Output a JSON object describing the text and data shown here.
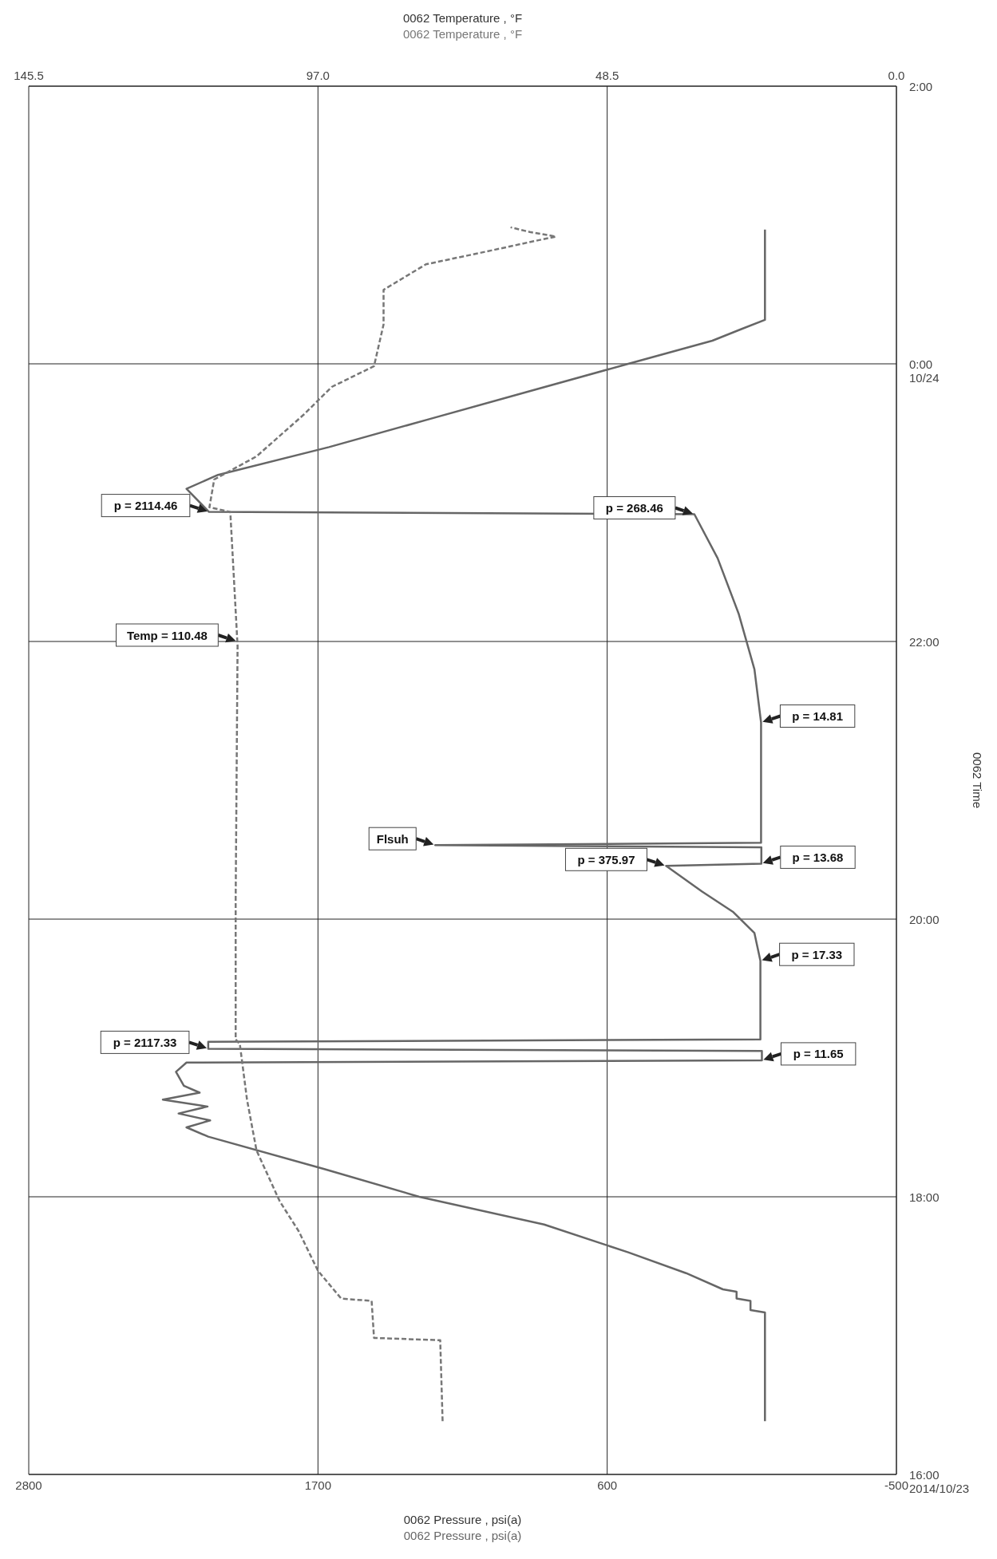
{
  "chart_data": {
    "type": "line",
    "orientation": "horizontal",
    "xlabel": "0062 Pressure , psi(a)",
    "x2label": "0062 Temperature , °F",
    "ylabel": "0062 Time",
    "ylim": [
      "2014-10-23T16:00",
      "2014-10-24T02:00"
    ],
    "yticks": [
      {
        "value": "2014-10-23T16:00",
        "label": "16:00\n2014/10/23"
      },
      {
        "value": "2014-10-23T18:00",
        "label": "18:00"
      },
      {
        "value": "2014-10-23T20:00",
        "label": "20:00"
      },
      {
        "value": "2014-10-23T22:00",
        "label": "22:00"
      },
      {
        "value": "2014-10-24T00:00",
        "label": "0:00\n10/24"
      },
      {
        "value": "2014-10-24T02:00",
        "label": "2:00"
      }
    ],
    "xlim": [
      2800,
      -500
    ],
    "xticks": [
      2800,
      1700,
      600,
      -500
    ],
    "x2lim": [
      145.5,
      0
    ],
    "x2ticks": [
      145.5,
      {
        "value": 97,
        "label": "97.0"
      },
      48.5,
      {
        "value": 0,
        "label": "0.0"
      }
    ],
    "grid": true,
    "marker": "none",
    "series": [
      {
        "name": "0062 Pressure , psi(a)",
        "color": "#666666",
        "line_style": "solid",
        "x": [
          "2014-10-23T16:23",
          "2014-10-23T17:10",
          "2014-10-23T17:11",
          "2014-10-23T17:15",
          "2014-10-23T17:16",
          "2014-10-23T17:19",
          "2014-10-23T17:20",
          "2014-10-23T17:27",
          "2014-10-23T17:36",
          "2014-10-23T17:48",
          "2014-10-23T18:00",
          "2014-10-23T18:12",
          "2014-10-23T18:26",
          "2014-10-23T18:30",
          "2014-10-23T18:33",
          "2014-10-23T18:36",
          "2014-10-23T18:39",
          "2014-10-23T18:42",
          "2014-10-23T18:45",
          "2014-10-23T18:48",
          "2014-10-23T18:54",
          "2014-10-23T18:58",
          "2014-10-23T18:59",
          "2014-10-23T19:03",
          "2014-10-23T19:04",
          "2014-10-23T19:07",
          "2014-10-23T19:08",
          "2014-10-23T19:42",
          "2014-10-23T19:54",
          "2014-10-23T20:03",
          "2014-10-23T20:12",
          "2014-10-23T20:23",
          "2014-10-23T20:24",
          "2014-10-23T20:31",
          "2014-10-23T20:32",
          "2014-10-23T20:33",
          "2014-10-23T21:25",
          "2014-10-23T21:48",
          "2014-10-23T22:12",
          "2014-10-23T22:36",
          "2014-10-23T22:55",
          "2014-10-23T22:56",
          "2014-10-23T23:06",
          "2014-10-23T23:12",
          "2014-10-23T23:24",
          "2014-10-23T23:36",
          "2014-10-23T23:48",
          "2014-10-24T00:00",
          "2014-10-24T00:10",
          "2014-10-24T00:15",
          "2014-10-24T00:19",
          "2014-10-24T00:58"
        ],
        "values": [
          0,
          0,
          55,
          55,
          108,
          108,
          160,
          300,
          520,
          840,
          1315,
          1676,
          2117.33,
          2200,
          2110,
          2230,
          2120,
          2290,
          2150,
          2210,
          2240,
          2200,
          11.65,
          11.65,
          2117.33,
          2117.33,
          17.33,
          17.33,
          40,
          120,
          240,
          375.97,
          13.68,
          13.68,
          1254,
          14.81,
          14.81,
          40,
          100,
          180,
          268.46,
          2114.46,
          2200,
          2080,
          1658,
          1280,
          900,
          520,
          200,
          90,
          0,
          0
        ]
      },
      {
        "name": "0062 Temperature , °F",
        "color": "#777777",
        "line_style": "dashed",
        "axis": "x2",
        "x": [
          "2014-10-23T16:23",
          "2014-10-23T16:58",
          "2014-10-23T16:59",
          "2014-10-23T17:15",
          "2014-10-23T17:16",
          "2014-10-23T17:28",
          "2014-10-23T17:45",
          "2014-10-23T17:58",
          "2014-10-23T18:20",
          "2014-10-23T18:42",
          "2014-10-23T19:06",
          "2014-10-23T19:08",
          "2014-10-23T20:09",
          "2014-10-23T21:58",
          "2014-10-23T22:56",
          "2014-10-23T22:58",
          "2014-10-23T23:10",
          "2014-10-23T23:20",
          "2014-10-23T23:38",
          "2014-10-23T23:50",
          "2014-10-23T23:59",
          "2014-10-24T00:17",
          "2014-10-24T00:32",
          "2014-10-24T00:43",
          "2014-10-24T00:49",
          "2014-10-24T00:53",
          "2014-10-24T00:55",
          "2014-10-24T00:57",
          "2014-10-24T00:59"
        ],
        "values": [
          76.1,
          76.5,
          87.6,
          88.0,
          93.1,
          97.0,
          100.2,
          103.4,
          107.3,
          108.9,
          110.1,
          110.8,
          110.8,
          110.48,
          111.7,
          115.2,
          114.4,
          107.3,
          99.4,
          94.7,
          87.6,
          86.0,
          86.0,
          78.9,
          67.9,
          60.8,
          57.1,
          61.5,
          64.7
        ]
      }
    ],
    "annotations": [
      {
        "text": "p = 2117.33",
        "y": "2014-10-23T19:04",
        "x": 2117.33
      },
      {
        "text": "p = 11.65",
        "y": "2014-10-23T18:59",
        "x": 11.65
      },
      {
        "text": "p = 17.33",
        "y": "2014-10-23T19:42",
        "x": 17.33
      },
      {
        "text": "p = 375.97",
        "y": "2014-10-23T20:23",
        "x": 375.97
      },
      {
        "text": "p = 13.68",
        "y": "2014-10-23T20:24",
        "x": 13.68
      },
      {
        "text": "Flsuh",
        "y": "2014-10-23T20:32",
        "x": 1254
      },
      {
        "text": "p = 14.81",
        "y": "2014-10-23T21:25",
        "x": 14.81
      },
      "Temp = 110.48",
      {
        "text": "p = 268.46",
        "y": "2014-10-23T22:55",
        "x": 268.46
      },
      {
        "text": "p = 2114.46",
        "y": "2014-10-23T22:56",
        "x": 2114.46
      }
    ]
  }
}
